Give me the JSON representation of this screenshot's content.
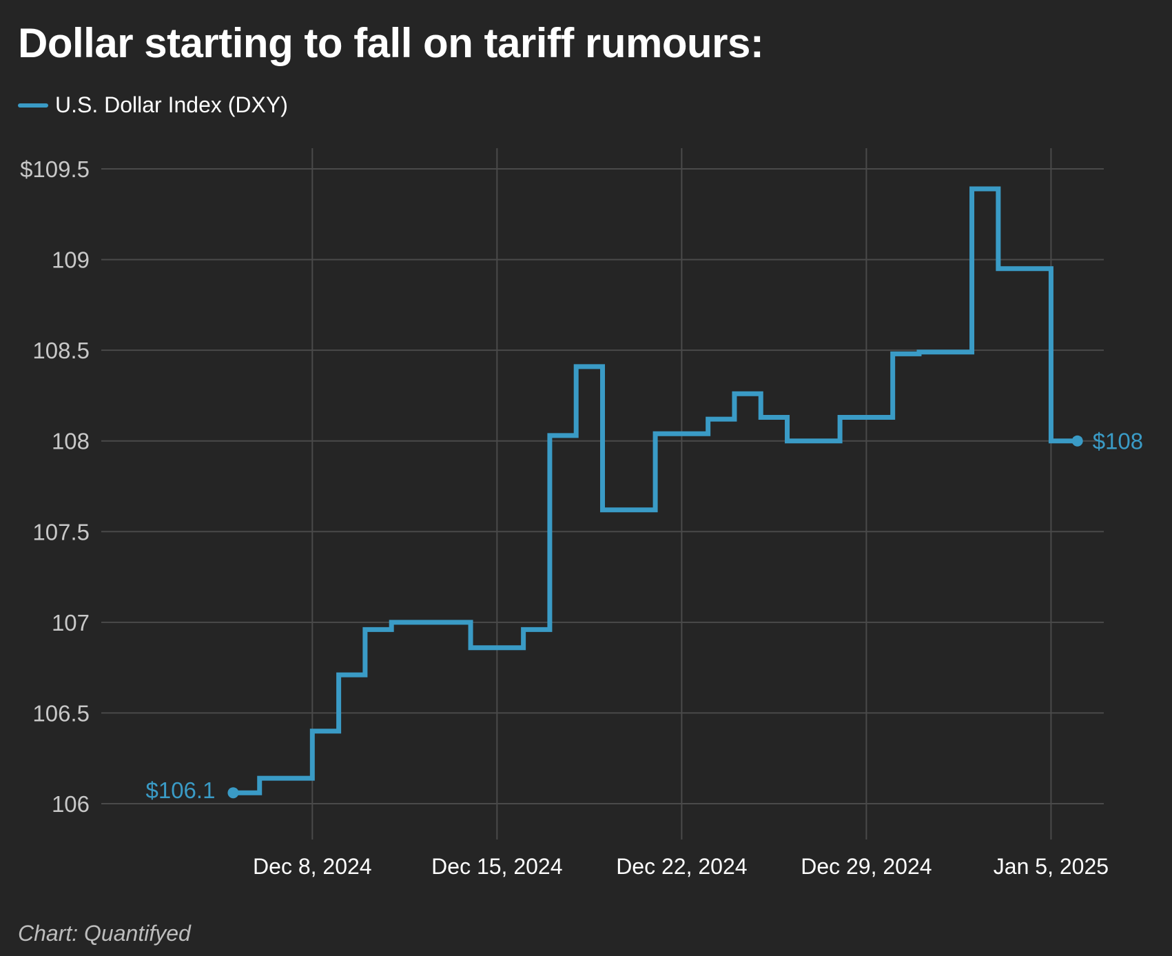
{
  "colors": {
    "background": "#252525",
    "line": "#3a9bc6",
    "grid": "#4a4a4a",
    "axis_text": "#c8c8c8",
    "tick_x_text": "#ffffff"
  },
  "source": "Chart: Quantifyed",
  "chart_data": {
    "type": "line",
    "title": "Dollar starting to fall on tariff rumours:",
    "step": true,
    "xlabel": "",
    "ylabel": "",
    "ylim": [
      106,
      109.5
    ],
    "y_ticks": [
      {
        "value": 109.5,
        "label": "$109.5"
      },
      {
        "value": 109,
        "label": "109"
      },
      {
        "value": 108.5,
        "label": "108.5"
      },
      {
        "value": 108,
        "label": "108"
      },
      {
        "value": 107.5,
        "label": "107.5"
      },
      {
        "value": 107,
        "label": "107"
      },
      {
        "value": 106.5,
        "label": "106.5"
      },
      {
        "value": 106,
        "label": "106"
      }
    ],
    "xlim": [
      "2024-11-30",
      "2025-01-07"
    ],
    "x_ticks": [
      {
        "date": "2024-12-08",
        "label": "Dec 8, 2024"
      },
      {
        "date": "2024-12-15",
        "label": "Dec 15, 2024"
      },
      {
        "date": "2024-12-22",
        "label": "Dec 22, 2024"
      },
      {
        "date": "2024-12-29",
        "label": "Dec 29, 2024"
      },
      {
        "date": "2025-01-05",
        "label": "Jan 5, 2025"
      }
    ],
    "grid": true,
    "legend_position": "top-left",
    "series": [
      {
        "name": "U.S. Dollar Index (DXY)",
        "points": [
          {
            "date": "2024-12-05",
            "value": 106.06
          },
          {
            "date": "2024-12-06",
            "value": 106.14
          },
          {
            "date": "2024-12-08",
            "value": 106.4
          },
          {
            "date": "2024-12-09",
            "value": 106.71
          },
          {
            "date": "2024-12-10",
            "value": 106.96
          },
          {
            "date": "2024-12-11",
            "value": 107.0
          },
          {
            "date": "2024-12-14",
            "value": 106.86
          },
          {
            "date": "2024-12-16",
            "value": 106.96
          },
          {
            "date": "2024-12-17",
            "value": 108.03
          },
          {
            "date": "2024-12-18",
            "value": 108.41
          },
          {
            "date": "2024-12-19",
            "value": 107.62
          },
          {
            "date": "2024-12-21",
            "value": 108.04
          },
          {
            "date": "2024-12-23",
            "value": 108.12
          },
          {
            "date": "2024-12-24",
            "value": 108.26
          },
          {
            "date": "2024-12-25",
            "value": 108.13
          },
          {
            "date": "2024-12-26",
            "value": 108.0
          },
          {
            "date": "2024-12-28",
            "value": 108.13
          },
          {
            "date": "2024-12-30",
            "value": 108.48
          },
          {
            "date": "2024-12-31",
            "value": 108.49
          },
          {
            "date": "2025-01-02",
            "value": 109.39
          },
          {
            "date": "2025-01-03",
            "value": 108.95
          },
          {
            "date": "2025-01-05",
            "value": 108.0
          },
          {
            "date": "2025-01-06",
            "value": 108.0
          }
        ]
      }
    ],
    "annotations": [
      {
        "label": "$106.1",
        "at": "start"
      },
      {
        "label": "$108",
        "at": "end"
      }
    ]
  }
}
